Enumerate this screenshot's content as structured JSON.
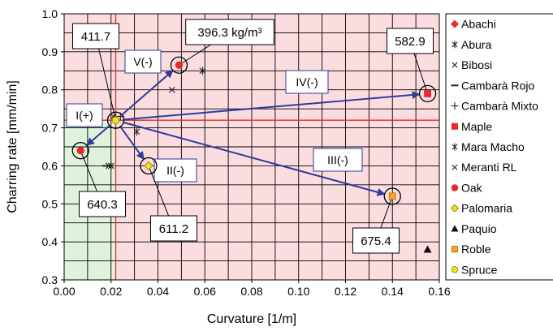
{
  "chart_data": {
    "type": "scatter",
    "xlabel": "Curvature [1/m]",
    "ylabel": "Charring rate [mm/min]",
    "xlim": [
      0.0,
      0.16
    ],
    "ylim": [
      0.3,
      1.0
    ],
    "x_ticks": [
      "0.00",
      "0.02",
      "0.04",
      "0.06",
      "0.08",
      "0.10",
      "0.12",
      "0.14",
      "0.16"
    ],
    "y_ticks": [
      "0.3",
      "0.4",
      "0.5",
      "0.6",
      "0.7",
      "0.8",
      "0.9",
      "1.0"
    ],
    "grid": true,
    "legend_position": "right",
    "reference_point": {
      "x": 0.022,
      "y": 0.72
    },
    "regions": [
      {
        "x": [
          0.0,
          0.022
        ],
        "y": [
          0.3,
          0.72
        ],
        "color": "#dff3dc"
      },
      {
        "x": [
          0.022,
          0.16
        ],
        "y": [
          0.3,
          1.0
        ],
        "color": "#fbdde0"
      },
      {
        "x": [
          0.0,
          0.022
        ],
        "y": [
          0.72,
          1.0
        ],
        "color": "#fbdde0"
      }
    ],
    "series": [
      {
        "name": "Abachi",
        "marker": "diamond",
        "color": "#e8282c",
        "points": [
          [
            0.022,
            0.72
          ]
        ]
      },
      {
        "name": "Abura",
        "marker": "asterisk",
        "color": "#222222",
        "points": [
          [
            0.059,
            0.85
          ],
          [
            0.031,
            0.69
          ]
        ]
      },
      {
        "name": "Bibosi",
        "marker": "x",
        "color": "#222222",
        "points": [
          [
            0.046,
            0.8
          ],
          [
            0.019,
            0.6
          ]
        ]
      },
      {
        "name": "Cambarà Rojo",
        "marker": "dash",
        "color": "#222222",
        "points": [
          [
            0.018,
            0.6
          ]
        ]
      },
      {
        "name": "Cambarà Mixto",
        "marker": "plus",
        "color": "#222222",
        "points": [
          [
            0.024,
            0.73
          ]
        ]
      },
      {
        "name": "Maple",
        "marker": "square",
        "color": "#e8282c",
        "points": [
          [
            0.155,
            0.79
          ]
        ]
      },
      {
        "name": "Mara Macho",
        "marker": "asterisk",
        "color": "#222222",
        "points": [
          [
            0.02,
            0.6
          ]
        ]
      },
      {
        "name": "Meranti RL",
        "marker": "x",
        "color": "#222222",
        "points": [
          [
            0.021,
            0.73
          ]
        ]
      },
      {
        "name": "Oak",
        "marker": "circle",
        "color": "#e8282c",
        "points": [
          [
            0.007,
            0.64
          ]
        ]
      },
      {
        "name": "Palomaria",
        "marker": "diamond",
        "color": "#f0e020",
        "points": [
          [
            0.036,
            0.6
          ]
        ]
      },
      {
        "name": "Paquio",
        "marker": "triangle",
        "color": "#111111",
        "points": [
          [
            0.155,
            0.38
          ]
        ]
      },
      {
        "name": "Roble",
        "marker": "square",
        "color": "#f7a51e",
        "points": [
          [
            0.14,
            0.52
          ]
        ]
      },
      {
        "name": "Spruce",
        "marker": "circle",
        "color": "#e8e820",
        "points": [
          [
            0.022,
            0.72
          ]
        ]
      }
    ],
    "rings": [
      {
        "x": 0.022,
        "y": 0.72
      },
      {
        "x": 0.049,
        "y": 0.865
      },
      {
        "x": 0.007,
        "y": 0.64
      },
      {
        "x": 0.036,
        "y": 0.6
      },
      {
        "x": 0.14,
        "y": 0.52
      },
      {
        "x": 0.155,
        "y": 0.79
      }
    ],
    "extra_points": [
      {
        "marker": "circle",
        "color": "#e8282c",
        "x": 0.049,
        "y": 0.865
      }
    ],
    "arrows": [
      {
        "label": "V(-)",
        "to": [
          0.049,
          0.865
        ]
      },
      {
        "label": "IV(-)",
        "to": [
          0.155,
          0.79
        ]
      },
      {
        "label": "I(+)",
        "to": [
          0.007,
          0.64
        ]
      },
      {
        "label": "II(-)",
        "to": [
          0.036,
          0.6
        ]
      },
      {
        "label": "III(-)",
        "to": [
          0.14,
          0.52
        ]
      }
    ],
    "annotations": [
      {
        "text": "411.7",
        "anchor": [
          0.022,
          0.72
        ]
      },
      {
        "text": "396.3 kg/m³",
        "anchor": [
          0.049,
          0.865
        ]
      },
      {
        "text": "582.9",
        "anchor": [
          0.155,
          0.79
        ]
      },
      {
        "text": "640.3",
        "anchor": [
          0.007,
          0.64
        ]
      },
      {
        "text": "611.2",
        "anchor": [
          0.036,
          0.6
        ]
      },
      {
        "text": "675.4",
        "anchor": [
          0.14,
          0.52
        ]
      }
    ]
  }
}
